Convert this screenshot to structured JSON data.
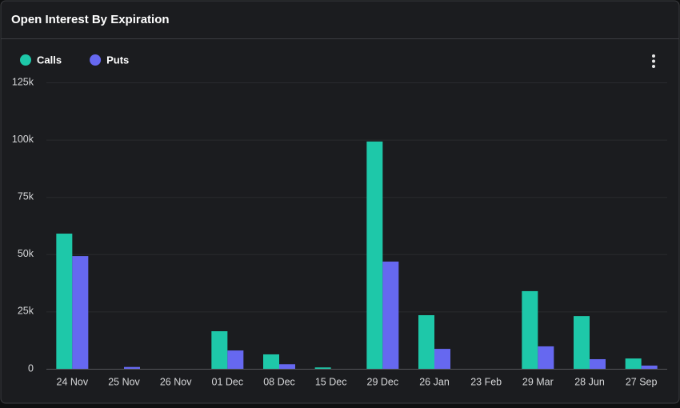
{
  "chart_data": {
    "type": "bar",
    "title": "Open Interest By Expiration",
    "categories": [
      "24 Nov",
      "25 Nov",
      "26 Nov",
      "01 Dec",
      "08 Dec",
      "15 Dec",
      "29 Dec",
      "26 Jan",
      "23 Feb",
      "29 Mar",
      "28 Jun",
      "27 Sep"
    ],
    "series": [
      {
        "name": "Calls",
        "color": "#1ec8a9",
        "values": [
          59000,
          0,
          0,
          16400,
          6300,
          600,
          99200,
          23400,
          0,
          33900,
          23000,
          4500
        ]
      },
      {
        "name": "Puts",
        "color": "#6668f0",
        "values": [
          49200,
          800,
          0,
          8000,
          2000,
          0,
          46800,
          8700,
          0,
          9800,
          4200,
          1400
        ]
      }
    ],
    "ylim": [
      0,
      125000
    ],
    "yticks": [
      0,
      {
        "value": 25000,
        "label": "25k"
      },
      {
        "value": 50000,
        "label": "50k"
      },
      {
        "value": 75000,
        "label": "75k"
      },
      {
        "value": 100000,
        "label": "100k"
      },
      {
        "value": 125000,
        "label": "125k"
      }
    ],
    "grid": true
  }
}
